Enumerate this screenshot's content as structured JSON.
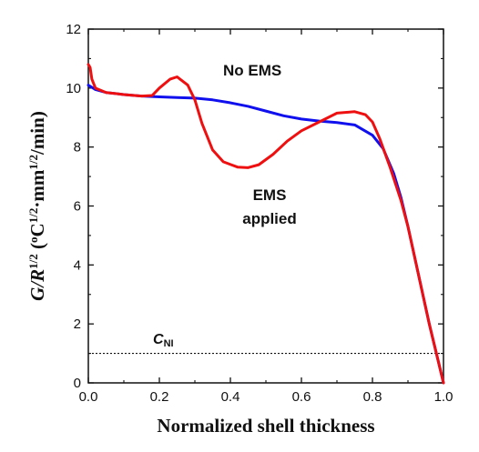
{
  "chart_data": {
    "type": "line",
    "title": "",
    "xlabel": "Normalized shell thickness",
    "ylabel": {
      "G": "G",
      "slash_R": "/R",
      "exp_half": "1/2",
      "open": " (",
      "degC": "°C",
      "dot_mm": "·mm",
      "close": "/min)"
    },
    "xlim": [
      0.0,
      1.0
    ],
    "ylim": [
      0,
      12
    ],
    "xticks": [
      "0.0",
      "0.2",
      "0.4",
      "0.6",
      "0.8",
      "1.0"
    ],
    "yticks": [
      "0",
      "2",
      "4",
      "6",
      "8",
      "10",
      "12"
    ],
    "grid": false,
    "series": [
      {
        "color": "#1010ee",
        "x": [
          0.0,
          0.02,
          0.05,
          0.1,
          0.15,
          0.2,
          0.25,
          0.3,
          0.35,
          0.4,
          0.45,
          0.5,
          0.55,
          0.6,
          0.65,
          0.7,
          0.75,
          0.8,
          0.83,
          0.86,
          0.88,
          0.9,
          0.92,
          0.94,
          0.96,
          0.98,
          1.0
        ],
        "y": [
          10.1,
          9.95,
          9.85,
          9.78,
          9.73,
          9.7,
          9.68,
          9.66,
          9.6,
          9.5,
          9.38,
          9.22,
          9.06,
          8.95,
          8.88,
          8.83,
          8.75,
          8.4,
          7.95,
          7.1,
          6.3,
          5.3,
          4.2,
          3.1,
          2.0,
          1.0,
          0.0
        ]
      },
      {
        "color": "#ee1010",
        "x": [
          0.0,
          0.005,
          0.01,
          0.02,
          0.05,
          0.1,
          0.15,
          0.18,
          0.2,
          0.23,
          0.25,
          0.28,
          0.3,
          0.32,
          0.35,
          0.38,
          0.42,
          0.45,
          0.48,
          0.52,
          0.56,
          0.6,
          0.65,
          0.7,
          0.75,
          0.78,
          0.8,
          0.82,
          0.85,
          0.88,
          0.9,
          0.92,
          0.94,
          0.96,
          0.98,
          1.0
        ],
        "y": [
          10.8,
          10.7,
          10.3,
          10.0,
          9.85,
          9.78,
          9.73,
          9.75,
          10.0,
          10.3,
          10.38,
          10.1,
          9.6,
          8.8,
          7.9,
          7.5,
          7.32,
          7.3,
          7.4,
          7.75,
          8.2,
          8.55,
          8.85,
          9.15,
          9.2,
          9.1,
          8.85,
          8.3,
          7.3,
          6.2,
          5.3,
          4.2,
          3.1,
          2.0,
          1.0,
          0.0
        ]
      }
    ],
    "reference_line": {
      "y": 1.0,
      "style": "dotted",
      "color": "#111111"
    },
    "annotations": {
      "no_ems": "No EMS",
      "ems_line1": "EMS",
      "ems_line2": "applied",
      "cni_main": "C",
      "cni_sub": "NI"
    }
  }
}
